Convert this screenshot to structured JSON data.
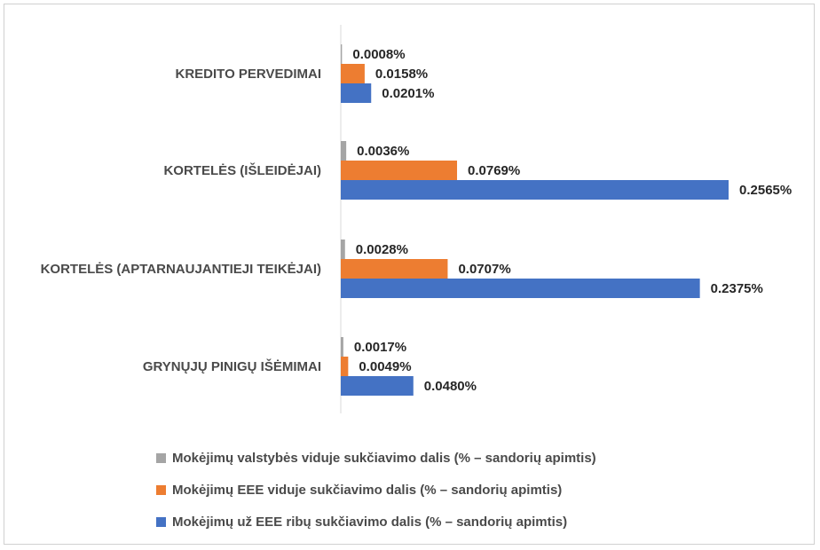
{
  "chart_data": {
    "type": "bar",
    "orientation": "horizontal",
    "categories": [
      "KREDITO PERVEDIMAI",
      "KORTELĖS (IŠLEIDĖJAI)",
      "KORTELĖS (APTARNAUJANTIEJI TEIKĖJAI)",
      "GRYNŲJŲ PINIGŲ IŠĖMIMAI"
    ],
    "series": [
      {
        "name": "Mokėjimų valstybės viduje sukčiavimo dalis (% – sandorių apimtis)",
        "color": "#a5a5a5",
        "values": [
          0.0008,
          0.0036,
          0.0028,
          0.0017
        ],
        "labels": [
          "0.0008%",
          "0.0036%",
          "0.0028%",
          "0.0017%"
        ]
      },
      {
        "name": "Mokėjimų EEE viduje sukčiavimo dalis (% – sandorių apimtis)",
        "color": "#ed7d31",
        "values": [
          0.0158,
          0.0769,
          0.0707,
          0.0049
        ],
        "labels": [
          "0.0158%",
          "0.0769%",
          "0.0707%",
          "0.0049%"
        ]
      },
      {
        "name": "Mokėjimų už EEE ribų sukčiavimo dalis (% – sandorių apimtis)",
        "color": "#4472c4",
        "values": [
          0.0201,
          0.2565,
          0.2375,
          0.048
        ],
        "labels": [
          "0.0201%",
          "0.2565%",
          "0.2375%",
          "0.0480%"
        ]
      }
    ],
    "xlim": [
      0,
      0.27
    ],
    "grid": false,
    "legend_position": "bottom",
    "axis_color": "#d9d9d9"
  }
}
